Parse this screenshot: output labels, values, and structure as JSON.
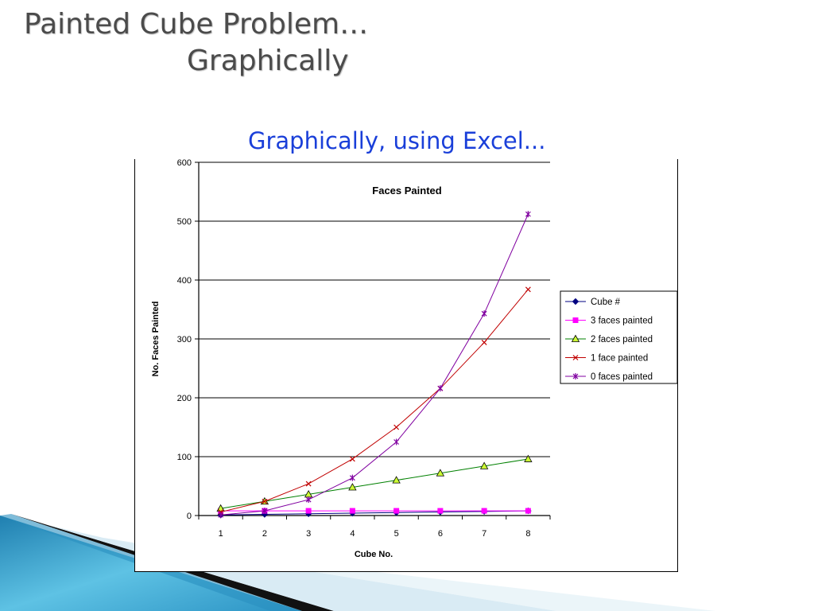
{
  "slide": {
    "title_line1": "Painted Cube Problem…",
    "title_line2": "Graphically",
    "subtitle": "Graphically, using Excel..."
  },
  "colors": {
    "title": "#4b4b4b",
    "subtitle": "#1a3fd9",
    "deco_blue": "#4fb3d6",
    "deco_black": "#111111"
  },
  "chart_data": {
    "type": "line",
    "title": "Faces Painted",
    "xlabel": "Cube No.",
    "ylabel": "No. Faces Painted",
    "categories": [
      "1",
      "2",
      "3",
      "4",
      "5",
      "6",
      "7",
      "8"
    ],
    "ylim": [
      0,
      600
    ],
    "yticks": [
      0,
      100,
      200,
      300,
      400,
      500,
      600
    ],
    "grid": "horizontal",
    "legend_position": "right",
    "series": [
      {
        "name": "Cube #",
        "values": [
          1,
          2,
          3,
          4,
          5,
          6,
          7,
          8
        ],
        "color": "#000080",
        "marker": "diamond"
      },
      {
        "name": "3 faces painted",
        "values": [
          8,
          8,
          8,
          8,
          8,
          8,
          8,
          8
        ],
        "color": "#ff00ff",
        "marker": "square"
      },
      {
        "name": "2 faces painted",
        "values": [
          12,
          24,
          36,
          48,
          60,
          72,
          84,
          96
        ],
        "color": "#008000",
        "marker": "triangle"
      },
      {
        "name": "1 face painted",
        "values": [
          6,
          24,
          54,
          96,
          150,
          216,
          294,
          384
        ],
        "color": "#c00000",
        "marker": "x"
      },
      {
        "name": "0 faces painted",
        "values": [
          1,
          8,
          27,
          64,
          125,
          216,
          343,
          512
        ],
        "color": "#8000a0",
        "marker": "star"
      }
    ]
  }
}
